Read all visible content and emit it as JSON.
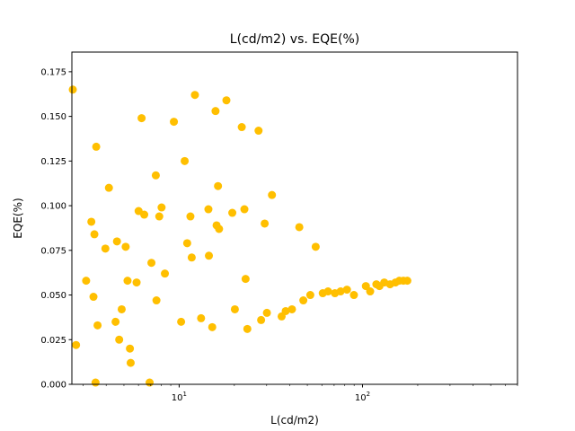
{
  "chart_data": {
    "type": "scatter",
    "title": "L(cd/m2) vs. EQE(%)",
    "xlabel": "L(cd/m2)",
    "ylabel": "EQE(%)",
    "xscale": "log",
    "xlim": [
      2.6,
      700
    ],
    "ylim": [
      0,
      0.186
    ],
    "xticks": [
      10,
      100
    ],
    "xtick_labels": [
      "10^1",
      "10^2"
    ],
    "yticks": [
      0.0,
      0.025,
      0.05,
      0.075,
      0.1,
      0.125,
      0.15,
      0.175
    ],
    "ytick_labels": [
      "0.000",
      "0.025",
      "0.050",
      "0.075",
      "0.100",
      "0.125",
      "0.150",
      "0.175"
    ],
    "grid": false,
    "marker_color": "#FFBF00",
    "series": [
      {
        "x": [
          2.63,
          2.74,
          3.11,
          3.32,
          3.41,
          3.45,
          3.5,
          3.53,
          3.59,
          3.96,
          4.14,
          4.5,
          4.58,
          4.71,
          4.86,
          5.11,
          5.23,
          5.39,
          5.44,
          5.86,
          6.01,
          6.24,
          6.45,
          6.9,
          7.06,
          7.46,
          7.52,
          7.79,
          8.02,
          8.36,
          9.36,
          10.25,
          10.72,
          11.06,
          11.52,
          11.71,
          12.19,
          13.17,
          14.44,
          14.53,
          15.15,
          15.79,
          16.0,
          16.29,
          16.51,
          18.1,
          19.49,
          20.13,
          21.95,
          22.69,
          23.03,
          23.54,
          27.1,
          27.99,
          29.27,
          30.1,
          32.07,
          36.21,
          38.1,
          41.23,
          45.21,
          47.55,
          51.9,
          55.54,
          60.68,
          64.84,
          70.71,
          75.9,
          82.23,
          89.75,
          104.29,
          110.07,
          118.98,
          123.65,
          131.41,
          141.31,
          151.23,
          158.75,
          167.06,
          175.49
        ],
        "y": [
          0.165,
          0.022,
          0.058,
          0.091,
          0.049,
          0.084,
          0.001,
          0.133,
          0.033,
          0.076,
          0.11,
          0.035,
          0.08,
          0.025,
          0.042,
          0.077,
          0.058,
          0.02,
          0.012,
          0.057,
          0.097,
          0.149,
          0.095,
          0.001,
          0.068,
          0.117,
          0.047,
          0.094,
          0.099,
          0.062,
          0.147,
          0.035,
          0.125,
          0.079,
          0.094,
          0.071,
          0.162,
          0.037,
          0.098,
          0.072,
          0.032,
          0.153,
          0.089,
          0.111,
          0.087,
          0.159,
          0.096,
          0.042,
          0.144,
          0.098,
          0.059,
          0.031,
          0.142,
          0.036,
          0.09,
          0.04,
          0.106,
          0.038,
          0.041,
          0.042,
          0.088,
          0.047,
          0.05,
          0.077,
          0.051,
          0.052,
          0.051,
          0.052,
          0.053,
          0.05,
          0.055,
          0.052,
          0.056,
          0.055,
          0.057,
          0.056,
          0.057,
          0.058,
          0.058,
          0.058
        ]
      }
    ]
  }
}
